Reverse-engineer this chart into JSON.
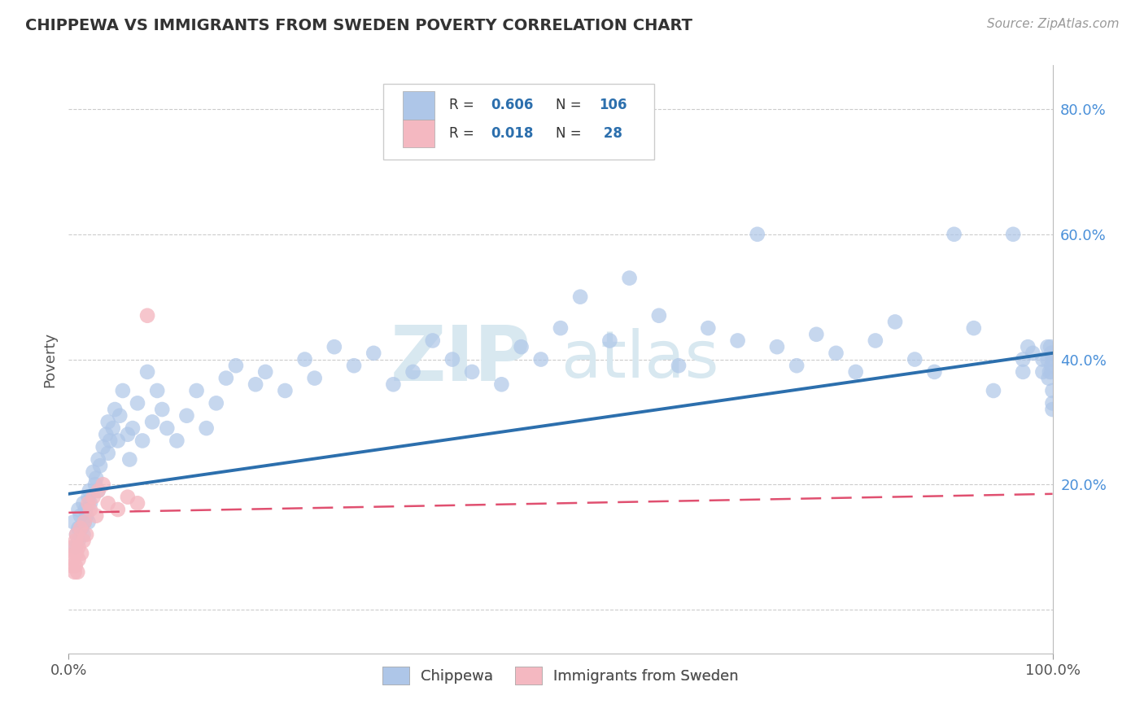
{
  "title": "CHIPPEWA VS IMMIGRANTS FROM SWEDEN POVERTY CORRELATION CHART",
  "source": "Source: ZipAtlas.com",
  "ylabel": "Poverty",
  "y_ticks": [
    0.0,
    0.2,
    0.4,
    0.6,
    0.8
  ],
  "y_tick_labels": [
    "",
    "20.0%",
    "40.0%",
    "60.0%",
    "80.0%"
  ],
  "x_range": [
    0.0,
    1.0
  ],
  "y_range": [
    -0.07,
    0.87
  ],
  "color_chippewa": "#aec6e8",
  "color_sweden": "#f4b8c1",
  "color_line1": "#2c6fad",
  "color_line2": "#e05070",
  "background_color": "#ffffff",
  "watermark_color": "#d8e8f0",
  "line1_intercept": 0.185,
  "line1_slope": 0.225,
  "line2_intercept": 0.155,
  "line2_slope": 0.03,
  "chippewa_x": [
    0.005,
    0.007,
    0.008,
    0.01,
    0.01,
    0.01,
    0.012,
    0.013,
    0.015,
    0.015,
    0.016,
    0.017,
    0.018,
    0.02,
    0.02,
    0.021,
    0.022,
    0.025,
    0.027,
    0.028,
    0.03,
    0.03,
    0.032,
    0.035,
    0.038,
    0.04,
    0.04,
    0.042,
    0.045,
    0.047,
    0.05,
    0.052,
    0.055,
    0.06,
    0.062,
    0.065,
    0.07,
    0.075,
    0.08,
    0.085,
    0.09,
    0.095,
    0.1,
    0.11,
    0.12,
    0.13,
    0.14,
    0.15,
    0.16,
    0.17,
    0.19,
    0.2,
    0.22,
    0.24,
    0.25,
    0.27,
    0.29,
    0.31,
    0.33,
    0.35,
    0.37,
    0.39,
    0.41,
    0.44,
    0.46,
    0.48,
    0.5,
    0.52,
    0.55,
    0.57,
    0.6,
    0.62,
    0.65,
    0.68,
    0.7,
    0.72,
    0.74,
    0.76,
    0.78,
    0.8,
    0.82,
    0.84,
    0.86,
    0.88,
    0.9,
    0.92,
    0.94,
    0.96,
    0.97,
    0.97,
    0.975,
    0.98,
    0.99,
    0.99,
    0.995,
    0.995,
    0.996,
    0.997,
    0.998,
    0.999,
    0.999,
    0.999,
    1.0,
    1.0,
    1.0,
    1.0
  ],
  "chippewa_y": [
    0.14,
    0.1,
    0.12,
    0.16,
    0.13,
    0.11,
    0.15,
    0.13,
    0.17,
    0.12,
    0.14,
    0.16,
    0.15,
    0.18,
    0.14,
    0.19,
    0.17,
    0.22,
    0.2,
    0.21,
    0.24,
    0.19,
    0.23,
    0.26,
    0.28,
    0.25,
    0.3,
    0.27,
    0.29,
    0.32,
    0.27,
    0.31,
    0.35,
    0.28,
    0.24,
    0.29,
    0.33,
    0.27,
    0.38,
    0.3,
    0.35,
    0.32,
    0.29,
    0.27,
    0.31,
    0.35,
    0.29,
    0.33,
    0.37,
    0.39,
    0.36,
    0.38,
    0.35,
    0.4,
    0.37,
    0.42,
    0.39,
    0.41,
    0.36,
    0.38,
    0.43,
    0.4,
    0.38,
    0.36,
    0.42,
    0.4,
    0.45,
    0.5,
    0.43,
    0.53,
    0.47,
    0.39,
    0.45,
    0.43,
    0.6,
    0.42,
    0.39,
    0.44,
    0.41,
    0.38,
    0.43,
    0.46,
    0.4,
    0.38,
    0.6,
    0.45,
    0.35,
    0.6,
    0.4,
    0.38,
    0.42,
    0.41,
    0.4,
    0.38,
    0.42,
    0.4,
    0.37,
    0.38,
    0.42,
    0.41,
    0.38,
    0.39,
    0.4,
    0.32,
    0.35,
    0.33
  ],
  "sweden_x": [
    0.003,
    0.004,
    0.005,
    0.006,
    0.006,
    0.007,
    0.007,
    0.008,
    0.008,
    0.009,
    0.01,
    0.01,
    0.012,
    0.013,
    0.015,
    0.016,
    0.018,
    0.02,
    0.022,
    0.025,
    0.028,
    0.03,
    0.035,
    0.04,
    0.05,
    0.06,
    0.07,
    0.08
  ],
  "sweden_y": [
    0.07,
    0.1,
    0.08,
    0.06,
    0.09,
    0.11,
    0.07,
    0.09,
    0.12,
    0.06,
    0.08,
    0.1,
    0.13,
    0.09,
    0.11,
    0.14,
    0.12,
    0.17,
    0.16,
    0.18,
    0.15,
    0.19,
    0.2,
    0.17,
    0.16,
    0.18,
    0.17,
    0.47
  ]
}
